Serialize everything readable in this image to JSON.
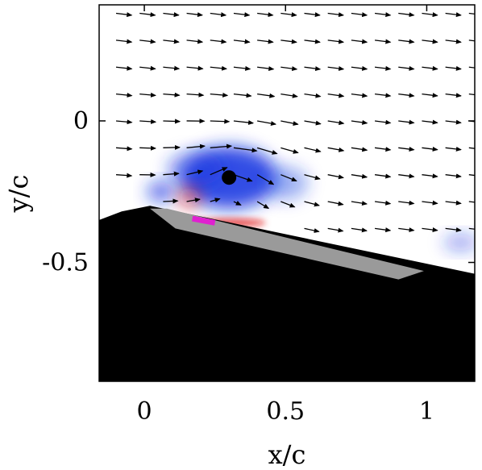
{
  "chart_data": {
    "type": "quiver",
    "title": "",
    "xlabel": "x/c",
    "ylabel": "y/c",
    "xlim": [
      -0.16,
      1.17
    ],
    "ylim": [
      -0.92,
      0.41
    ],
    "xticks": [
      0,
      0.5,
      1
    ],
    "xtick_labels": [
      "0",
      "0.5",
      "1"
    ],
    "yticks": [
      0,
      -0.5
    ],
    "ytick_labels": [
      "0",
      "-0.5"
    ],
    "grid": false,
    "vortex_core": {
      "x": 0.3,
      "y": -0.2
    },
    "arrow_grid": {
      "x_start": -0.1,
      "x_step": 0.0833,
      "y_start": 0.38,
      "y_step": -0.095,
      "rows": 9
    },
    "vorticity_blobs": [
      {
        "sign": "negative",
        "x": 0.3,
        "y": -0.2,
        "rx": 0.17,
        "ry": 0.11,
        "strength": 1.0
      },
      {
        "sign": "negative",
        "x": 0.18,
        "y": -0.17,
        "rx": 0.1,
        "ry": 0.06,
        "strength": 0.55
      },
      {
        "sign": "negative",
        "x": 0.06,
        "y": -0.25,
        "rx": 0.05,
        "ry": 0.035,
        "strength": 0.8
      },
      {
        "sign": "negative",
        "x": 0.5,
        "y": -0.22,
        "rx": 0.08,
        "ry": 0.06,
        "strength": 0.45
      },
      {
        "sign": "negative",
        "x": 1.12,
        "y": -0.43,
        "rx": 0.06,
        "ry": 0.03,
        "strength": 0.5
      },
      {
        "sign": "positive",
        "x": 0.16,
        "y": -0.27,
        "rx": 0.04,
        "ry": 0.035,
        "strength": 0.7
      },
      {
        "sign": "positive",
        "x": 0.3,
        "y": -0.36,
        "rx": 0.13,
        "ry": 0.015,
        "strength": 0.85
      }
    ],
    "geometry": {
      "body_outline": [
        [
          -0.16,
          -0.35
        ],
        [
          -0.08,
          -0.32
        ],
        [
          0.02,
          -0.3
        ],
        [
          1.17,
          -0.54
        ],
        [
          1.17,
          -0.92
        ],
        [
          -0.16,
          -0.92
        ]
      ],
      "plate_outline": [
        [
          0.02,
          -0.31
        ],
        [
          0.11,
          -0.38
        ],
        [
          0.9,
          -0.56
        ],
        [
          0.99,
          -0.53
        ],
        [
          0.08,
          -0.31
        ]
      ],
      "marker": {
        "x1": 0.17,
        "y1": -0.345,
        "x2": 0.25,
        "y2": -0.36
      }
    },
    "colors": {
      "negative": "#1030e0",
      "positive": "#e01010",
      "body": "#000000",
      "plate": "#9a9a9a",
      "marker": "#e020d0",
      "arrows": "#000000"
    }
  }
}
